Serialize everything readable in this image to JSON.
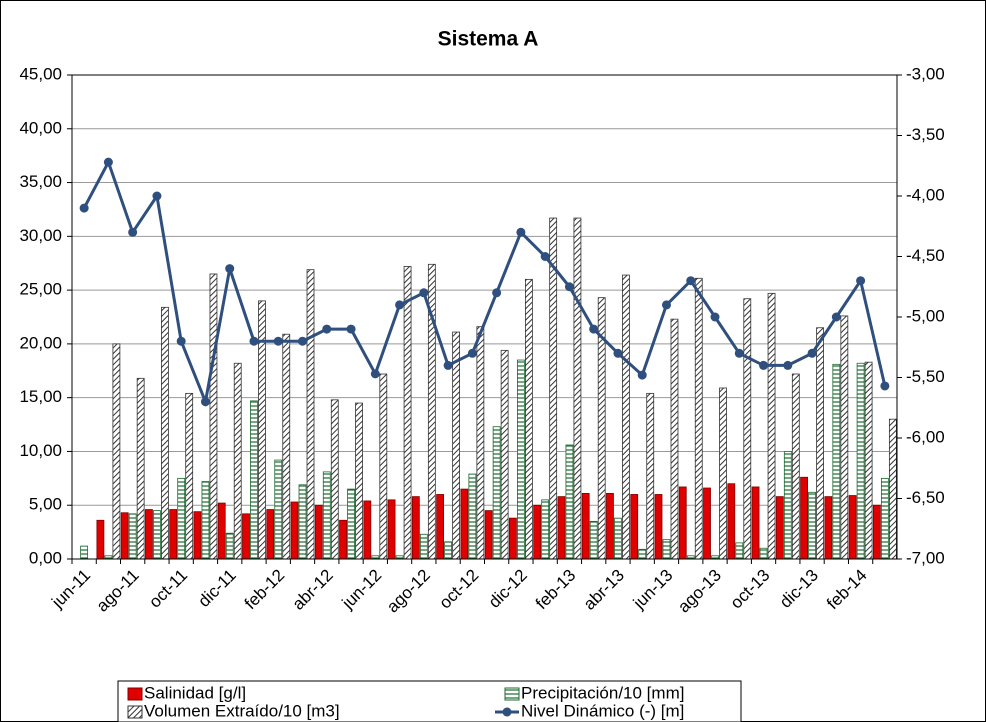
{
  "chart_data": {
    "type": "bar-line",
    "title": "Sistema A",
    "categories": [
      "jun-11",
      null,
      "ago-11",
      null,
      "oct-11",
      null,
      "dic-11",
      null,
      "feb-12",
      null,
      "abr-12",
      null,
      "jun-12",
      null,
      "ago-12",
      null,
      "oct-12",
      null,
      "dic-12",
      null,
      "feb-13",
      null,
      "abr-13",
      null,
      "jun-13",
      null,
      "ago-13",
      null,
      "oct-13",
      null,
      "dic-13",
      null,
      "feb-14",
      null
    ],
    "series": [
      {
        "name": "Salinidad [g/l]",
        "color": "#e00000",
        "kind": "bar",
        "values": [
          null,
          3.6,
          4.3,
          4.6,
          4.6,
          4.4,
          5.2,
          4.2,
          4.6,
          5.3,
          5.0,
          3.6,
          5.4,
          5.5,
          5.8,
          6.0,
          6.5,
          4.5,
          3.8,
          5.0,
          5.8,
          6.1,
          6.1,
          6.0,
          6.0,
          6.7,
          6.6,
          7.0,
          6.7,
          5.8,
          7.6,
          5.8,
          5.9,
          5.0
        ]
      },
      {
        "name": "Precipitación/10 [mm]",
        "color": "#1a6b2e",
        "kind": "bar",
        "values": [
          1.2,
          0.3,
          4.2,
          4.5,
          7.5,
          7.2,
          2.4,
          14.7,
          9.2,
          6.9,
          8.1,
          6.5,
          0.3,
          0.3,
          2.3,
          1.6,
          7.9,
          12.3,
          18.5,
          5.5,
          10.6,
          3.5,
          3.8,
          0.9,
          1.8,
          0.3,
          0.3,
          1.5,
          1.0,
          10.0,
          6.2,
          18.1,
          18.2,
          7.5
        ]
      },
      {
        "name": "Volumen Extraído/10  [m3]",
        "color": "#000000",
        "kind": "bar",
        "values": [
          null,
          20.0,
          16.8,
          23.4,
          15.4,
          26.5,
          18.2,
          24.0,
          20.9,
          26.9,
          14.8,
          14.5,
          17.2,
          27.2,
          27.4,
          21.1,
          21.6,
          19.4,
          26.0,
          31.7,
          31.7,
          24.3,
          26.4,
          15.4,
          22.3,
          26.1,
          15.9,
          24.2,
          24.7,
          17.2,
          21.5,
          22.6,
          18.3,
          13.0
        ]
      },
      {
        "name": "Nivel Dinámico (-) [m]",
        "color": "#2f4f7f",
        "kind": "line",
        "axis": "y2",
        "values": [
          -4.1,
          -3.72,
          -4.3,
          -4.0,
          -5.2,
          -5.7,
          -4.6,
          -5.2,
          -5.2,
          -5.2,
          -5.1,
          -5.1,
          -5.47,
          -4.9,
          -4.8,
          -5.4,
          -5.3,
          -4.8,
          -4.3,
          -4.5,
          -4.75,
          -5.1,
          -5.3,
          -5.48,
          -4.9,
          -4.7,
          -5.0,
          -5.3,
          -5.4,
          -5.4,
          -5.3,
          -5.0,
          -4.7,
          -5.57
        ]
      }
    ],
    "ylim": [
      0,
      45
    ],
    "yticks": [
      {
        "value": 0,
        "label": "0,00"
      },
      {
        "value": 5,
        "label": "5,00"
      },
      {
        "value": 10,
        "label": "10,00"
      },
      {
        "value": 15,
        "label": "15,00"
      },
      {
        "value": 20,
        "label": "20,00"
      },
      {
        "value": 25,
        "label": "25,00"
      },
      {
        "value": 30,
        "label": "30,00"
      },
      {
        "value": 35,
        "label": "35,00"
      },
      {
        "value": 40,
        "label": "40,00"
      },
      {
        "value": 45,
        "label": "45,00"
      }
    ],
    "y2lim": [
      -7,
      -3
    ],
    "y2ticks": [
      {
        "value": -3,
        "label": "-3,00"
      },
      {
        "value": -3.5,
        "label": "-3,50"
      },
      {
        "value": -4,
        "label": "-4,00"
      },
      {
        "value": -4.5,
        "label": "-4,50"
      },
      {
        "value": -5,
        "label": "-5,00"
      },
      {
        "value": -5.5,
        "label": "-5,50"
      },
      {
        "value": -6,
        "label": "-6,00"
      },
      {
        "value": -6.5,
        "label": "-6,50"
      },
      {
        "value": -7,
        "label": "-7,00"
      }
    ],
    "grid": true
  }
}
